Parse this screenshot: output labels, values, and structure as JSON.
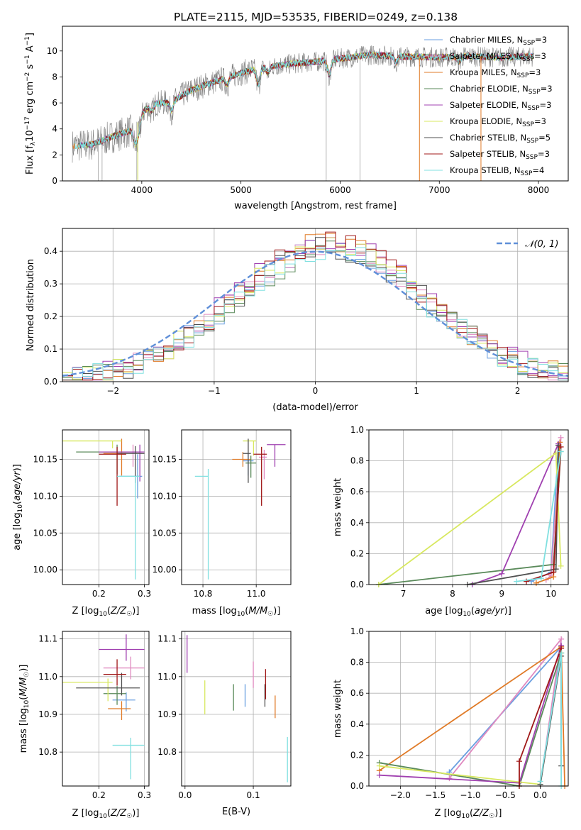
{
  "figure_title": "PLATE=2115, MJD=53535, FIBERID=0249, z=0.138",
  "colors": {
    "Chabrier MILES": "#6a9fe0",
    "Salpeter MILES": "#e08ac0",
    "Kroupa MILES": "#e07b28",
    "Chabrier ELODIE": "#5a8a5a",
    "Salpeter ELODIE": "#a040b0",
    "Kroupa ELODIE": "#d8e860",
    "Chabrier STELIB": "#505050",
    "Salpeter STELIB": "#a01818",
    "Kroupa STELIB": "#80e0e0",
    "data": "#808080",
    "gauss": "#5f8fd8"
  },
  "chart_data": [
    {
      "id": "spectrum",
      "type": "line",
      "title": "PLATE=2115, MJD=53535, FIBERID=0249, z=0.138",
      "xlabel": "wavelength [Angstrom, rest frame]",
      "ylabel_main": "Flux [f",
      "ylabel_sub": "λ",
      "ylabel_rest": "10",
      "ylabel_exp1": "−17",
      "ylabel_mid": " erg cm",
      "ylabel_exp2": "−2",
      "ylabel_mid2": " s",
      "ylabel_exp3": "−1",
      "ylabel_end": " A",
      "ylabel_exp4": "−1",
      "ylabel_close": "]",
      "xlim": [
        3200,
        8300
      ],
      "ylim": [
        0,
        11.9
      ],
      "xticks": [
        4000,
        5000,
        6000,
        7000,
        8000
      ],
      "yticks": [
        0,
        2,
        4,
        6,
        8,
        10
      ],
      "legend_position": "top-right",
      "legend": [
        {
          "name": "Chabrier MILES, N",
          "sub": "SSP",
          "tail": "=3"
        },
        {
          "name": "Salpeter MILES, N",
          "sub": "SSP",
          "tail": "=3"
        },
        {
          "name": "Kroupa MILES, N",
          "sub": "SSP",
          "tail": "=3"
        },
        {
          "name": "Chabrier ELODIE, N",
          "sub": "SSP",
          "tail": "=3"
        },
        {
          "name": "Salpeter ELODIE, N",
          "sub": "SSP",
          "tail": "=3"
        },
        {
          "name": "Kroupa ELODIE, N",
          "sub": "SSP",
          "tail": "=3"
        },
        {
          "name": "Chabrier STELIB, N",
          "sub": "SSP",
          "tail": "=5"
        },
        {
          "name": "Salpeter STELIB, N",
          "sub": "SSP",
          "tail": "=3"
        },
        {
          "name": "Kroupa STELIB, N",
          "sub": "SSP",
          "tail": "=4"
        }
      ],
      "continuum": [
        [
          3300,
          2.7
        ],
        [
          3500,
          2.8
        ],
        [
          3700,
          3.4
        ],
        [
          3900,
          3.9
        ],
        [
          4000,
          5.2
        ],
        [
          4100,
          5.9
        ],
        [
          4300,
          6.1
        ],
        [
          4500,
          7.0
        ],
        [
          4800,
          7.8
        ],
        [
          5000,
          8.3
        ],
        [
          5200,
          8.7
        ],
        [
          5500,
          9.0
        ],
        [
          5800,
          9.2
        ],
        [
          6000,
          9.4
        ],
        [
          6300,
          9.7
        ],
        [
          6600,
          9.6
        ],
        [
          7000,
          9.5
        ],
        [
          7300,
          9.6
        ],
        [
          7600,
          9.5
        ],
        [
          7950,
          9.6
        ]
      ],
      "model_starts": [
        3400,
        3450,
        3300,
        3420,
        3380,
        3430,
        3360,
        3440,
        3320
      ],
      "model_ends": [
        7950,
        7950,
        7420,
        7950,
        7950,
        7950,
        7950,
        7950,
        7950
      ]
    },
    {
      "id": "residual_hist",
      "type": "histogram",
      "xlabel": "(data-model)/error",
      "ylabel": "Normed distribution",
      "xlim": [
        -2.5,
        2.5
      ],
      "ylim": [
        0,
        0.47
      ],
      "xticks": [
        -2,
        -1,
        0,
        1,
        2
      ],
      "yticks": [
        0.0,
        0.1,
        0.2,
        0.3,
        0.4
      ],
      "grid": true,
      "gauss_label": "𝒩(0, 1)",
      "legend_position": "top-right",
      "bin_width": 0.1,
      "series_peak": [
        0.41,
        0.42,
        0.43,
        0.4,
        0.44,
        0.42,
        0.41,
        0.43,
        0.4
      ]
    },
    {
      "id": "age_vs_Z",
      "type": "errorbar",
      "xlabel": "Z [log10(Z/Z☉)]",
      "ylabel": "age  [log10(age/yr)]",
      "xlim": [
        0.12,
        0.31
      ],
      "ylim": [
        9.98,
        10.19
      ],
      "xticks": [
        0.2,
        0.3
      ],
      "yticks": [
        10.0,
        10.05,
        10.1,
        10.15
      ],
      "points": [
        {
          "x": 0.285,
          "y": 10.127,
          "xerr": [
            0.04,
            0.01
          ],
          "yerr": [
            0.03,
            0.03
          ]
        },
        {
          "x": 0.275,
          "y": 10.16,
          "xerr": [
            0.05,
            0.02
          ],
          "yerr": [
            0.02,
            0.01
          ]
        },
        {
          "x": 0.25,
          "y": 10.158,
          "xerr": [
            0.04,
            0.01
          ],
          "yerr": [
            0.03,
            0.02
          ]
        },
        {
          "x": 0.24,
          "y": 10.16,
          "xerr": [
            0.09,
            0.05
          ],
          "yerr": [
            0.03,
            0.01
          ]
        },
        {
          "x": 0.29,
          "y": 10.16,
          "xerr": [
            0.09,
            0.01
          ],
          "yerr": [
            0.04,
            0.01
          ]
        },
        {
          "x": 0.23,
          "y": 10.175,
          "xerr": [
            0.11,
            0.02
          ],
          "yerr": [
            0.01,
            0.0
          ]
        },
        {
          "x": 0.28,
          "y": 10.158,
          "xerr": [
            0.04,
            0.02
          ],
          "yerr": [
            0.04,
            0.01
          ]
        },
        {
          "x": 0.24,
          "y": 10.157,
          "xerr": [
            0.04,
            0.02
          ],
          "yerr": [
            0.07,
            0.01
          ]
        },
        {
          "x": 0.28,
          "y": 10.127,
          "xerr": [
            0.04,
            0.01
          ],
          "yerr": [
            0.14,
            0.0
          ]
        }
      ]
    },
    {
      "id": "age_vs_mass",
      "type": "errorbar",
      "xlabel": "mass [log10(M/M☉)]",
      "ylabel": "",
      "xlim": [
        10.72,
        11.13
      ],
      "ylim": [
        9.98,
        10.19
      ],
      "xticks": [
        10.8,
        11.0
      ],
      "yticks": [
        10.0,
        10.05,
        10.1,
        10.15
      ],
      "points": [
        {
          "x": 10.97,
          "y": 10.148,
          "xerr": [
            0.02,
            0.02
          ],
          "yerr": [
            0.02,
            0.01
          ]
        },
        {
          "x": 11.03,
          "y": 10.153,
          "xerr": [
            0.02,
            0.01
          ],
          "yerr": [
            0.03,
            0.01
          ]
        },
        {
          "x": 10.95,
          "y": 10.15,
          "xerr": [
            0.04,
            0.03
          ],
          "yerr": [
            0.01,
            0.01
          ]
        },
        {
          "x": 10.98,
          "y": 10.145,
          "xerr": [
            0.02,
            0.02
          ],
          "yerr": [
            0.02,
            0.01
          ]
        },
        {
          "x": 11.07,
          "y": 10.17,
          "xerr": [
            0.03,
            0.04
          ],
          "yerr": [
            0.03,
            0.0
          ]
        },
        {
          "x": 10.99,
          "y": 10.175,
          "xerr": [
            0.04,
            0.01
          ],
          "yerr": [
            0.02,
            0.0
          ]
        },
        {
          "x": 10.97,
          "y": 10.158,
          "xerr": [
            0.02,
            0.01
          ],
          "yerr": [
            0.04,
            0.02
          ]
        },
        {
          "x": 11.02,
          "y": 10.157,
          "xerr": [
            0.03,
            0.02
          ],
          "yerr": [
            0.07,
            0.01
          ]
        },
        {
          "x": 10.82,
          "y": 10.127,
          "xerr": [
            0.05,
            0.0
          ],
          "yerr": [
            0.14,
            0.01
          ]
        }
      ]
    },
    {
      "id": "weight_vs_age",
      "type": "line",
      "xlabel": "age  [log10(age/yr)]",
      "ylabel": "mass weight",
      "xlim": [
        6.3,
        10.35
      ],
      "ylim": [
        0,
        1.0
      ],
      "xticks": [
        7,
        8,
        9,
        10
      ],
      "yticks": [
        0.0,
        0.2,
        0.4,
        0.6,
        0.8,
        1.0
      ],
      "grid": true,
      "series": [
        {
          "points": [
            [
              9.6,
              0.02
            ],
            [
              10.0,
              0.08
            ],
            [
              10.15,
              0.9
            ]
          ]
        },
        {
          "points": [
            [
              9.9,
              0.03
            ],
            [
              10.0,
              0.06
            ],
            [
              10.2,
              0.95
            ]
          ]
        },
        {
          "points": [
            [
              9.7,
              0.01
            ],
            [
              10.05,
              0.05
            ],
            [
              10.18,
              0.92
            ]
          ]
        },
        {
          "points": [
            [
              6.5,
              0.0
            ],
            [
              10.05,
              0.13
            ],
            [
              10.2,
              0.86
            ]
          ]
        },
        {
          "points": [
            [
              8.4,
              0.0
            ],
            [
              9.0,
              0.07
            ],
            [
              10.15,
              0.91
            ]
          ]
        },
        {
          "points": [
            [
              6.5,
              0.0
            ],
            [
              10.1,
              0.85
            ],
            [
              10.2,
              0.12
            ]
          ]
        },
        {
          "points": [
            [
              8.3,
              0.0
            ],
            [
              10.1,
              0.1
            ],
            [
              10.15,
              0.9
            ]
          ]
        },
        {
          "points": [
            [
              9.5,
              0.02
            ],
            [
              10.05,
              0.08
            ],
            [
              10.2,
              0.89
            ]
          ]
        },
        {
          "points": [
            [
              9.3,
              0.02
            ],
            [
              9.8,
              0.04
            ],
            [
              10.2,
              0.86
            ]
          ]
        }
      ]
    },
    {
      "id": "mass_vs_Z",
      "type": "errorbar",
      "xlabel": "Z [log10(Z/Z☉)]",
      "ylabel": "mass [log10(M/M☉)]",
      "xlim": [
        0.12,
        0.31
      ],
      "ylim": [
        10.71,
        11.12
      ],
      "xticks": [
        0.2,
        0.3
      ],
      "yticks": [
        10.8,
        10.9,
        11.0,
        11.1
      ],
      "points": [
        {
          "x": 0.26,
          "y": 10.938,
          "xerr": [
            0.03,
            0.02
          ],
          "yerr": [
            0.03,
            0.02
          ]
        },
        {
          "x": 0.27,
          "y": 11.023,
          "xerr": [
            0.06,
            0.03
          ],
          "yerr": [
            0.03,
            0.03
          ]
        },
        {
          "x": 0.25,
          "y": 10.915,
          "xerr": [
            0.03,
            0.02
          ],
          "yerr": [
            0.03,
            0.02
          ]
        },
        {
          "x": 0.24,
          "y": 10.955,
          "xerr": [
            0.03,
            0.02
          ],
          "yerr": [
            0.03,
            0.02
          ]
        },
        {
          "x": 0.26,
          "y": 11.072,
          "xerr": [
            0.06,
            0.04
          ],
          "yerr": [
            0.03,
            0.04
          ]
        },
        {
          "x": 0.22,
          "y": 10.985,
          "xerr": [
            0.1,
            0.01
          ],
          "yerr": [
            0.05,
            0.01
          ]
        },
        {
          "x": 0.25,
          "y": 10.97,
          "xerr": [
            0.1,
            0.04
          ],
          "yerr": [
            0.02,
            0.04
          ]
        },
        {
          "x": 0.24,
          "y": 11.006,
          "xerr": [
            0.03,
            0.02
          ],
          "yerr": [
            0.03,
            0.04
          ]
        },
        {
          "x": 0.27,
          "y": 10.818,
          "xerr": [
            0.04,
            0.03
          ],
          "yerr": [
            0.09,
            0.02
          ]
        }
      ]
    },
    {
      "id": "mass_vs_ebv",
      "type": "errorbar",
      "xlabel": "E(B-V)",
      "ylabel": "",
      "xlim": [
        -0.005,
        0.155
      ],
      "ylim": [
        10.71,
        11.12
      ],
      "xticks": [
        0.0,
        0.1
      ],
      "yticks": [
        10.8,
        10.9,
        11.0,
        11.1
      ],
      "points": [
        {
          "x": 0.088,
          "y": 10.95,
          "xerr": [
            0,
            0
          ],
          "yerr": [
            0.03,
            0.03
          ]
        },
        {
          "x": 0.1,
          "y": 11.0,
          "xerr": [
            0,
            0
          ],
          "yerr": [
            0.03,
            0.04
          ]
        },
        {
          "x": 0.132,
          "y": 10.92,
          "xerr": [
            0,
            0
          ],
          "yerr": [
            0.03,
            0.03
          ]
        },
        {
          "x": 0.071,
          "y": 10.95,
          "xerr": [
            0,
            0
          ],
          "yerr": [
            0.04,
            0.03
          ]
        },
        {
          "x": 0.003,
          "y": 11.06,
          "xerr": [
            0,
            0
          ],
          "yerr": [
            0.05,
            0.05
          ]
        },
        {
          "x": 0.029,
          "y": 10.95,
          "xerr": [
            0,
            0
          ],
          "yerr": [
            0.05,
            0.04
          ]
        },
        {
          "x": 0.117,
          "y": 10.95,
          "xerr": [
            0,
            0
          ],
          "yerr": [
            0.03,
            0.03
          ]
        },
        {
          "x": 0.118,
          "y": 10.98,
          "xerr": [
            0,
            0
          ],
          "yerr": [
            0.04,
            0.04
          ]
        },
        {
          "x": 0.15,
          "y": 10.78,
          "xerr": [
            0,
            0
          ],
          "yerr": [
            0.06,
            0.06
          ]
        }
      ]
    },
    {
      "id": "weight_vs_Z",
      "type": "line",
      "xlabel": "Z [log10(Z/Z☉)]",
      "ylabel": "mass weight",
      "xlim": [
        -2.45,
        0.4
      ],
      "ylim": [
        0,
        1.0
      ],
      "xticks": [
        -2.0,
        -1.5,
        -1.0,
        -0.5,
        0.0
      ],
      "yticks": [
        0.0,
        0.2,
        0.4,
        0.6,
        0.8,
        1.0
      ],
      "grid": true,
      "series": [
        {
          "points": [
            [
              -1.3,
              0.09
            ],
            [
              0.3,
              0.9
            ],
            [
              0.0,
              0.01
            ]
          ]
        },
        {
          "points": [
            [
              -1.3,
              0.05
            ],
            [
              0.3,
              0.95
            ],
            [
              0.0,
              0.01
            ]
          ]
        },
        {
          "points": [
            [
              -2.3,
              0.1
            ],
            [
              0.3,
              0.9
            ],
            [
              0.35,
              0.0
            ]
          ]
        },
        {
          "points": [
            [
              -2.3,
              0.15
            ],
            [
              -0.3,
              0.0
            ],
            [
              0.3,
              0.86
            ]
          ]
        },
        {
          "points": [
            [
              -2.3,
              0.07
            ],
            [
              -0.3,
              0.02
            ],
            [
              0.3,
              0.91
            ]
          ]
        },
        {
          "points": [
            [
              -2.3,
              0.13
            ],
            [
              0.0,
              0.01
            ],
            [
              0.3,
              0.86
            ]
          ]
        },
        {
          "points": [
            [
              0.0,
              0.01
            ],
            [
              0.3,
              0.84
            ],
            [
              0.3,
              0.13
            ]
          ]
        },
        {
          "points": [
            [
              -0.3,
              0.0
            ],
            [
              -0.3,
              0.16
            ],
            [
              0.3,
              0.89
            ]
          ]
        },
        {
          "points": [
            [
              0.0,
              0.03
            ],
            [
              0.3,
              0.86
            ],
            [
              0.3,
              0.0
            ]
          ]
        }
      ]
    }
  ]
}
